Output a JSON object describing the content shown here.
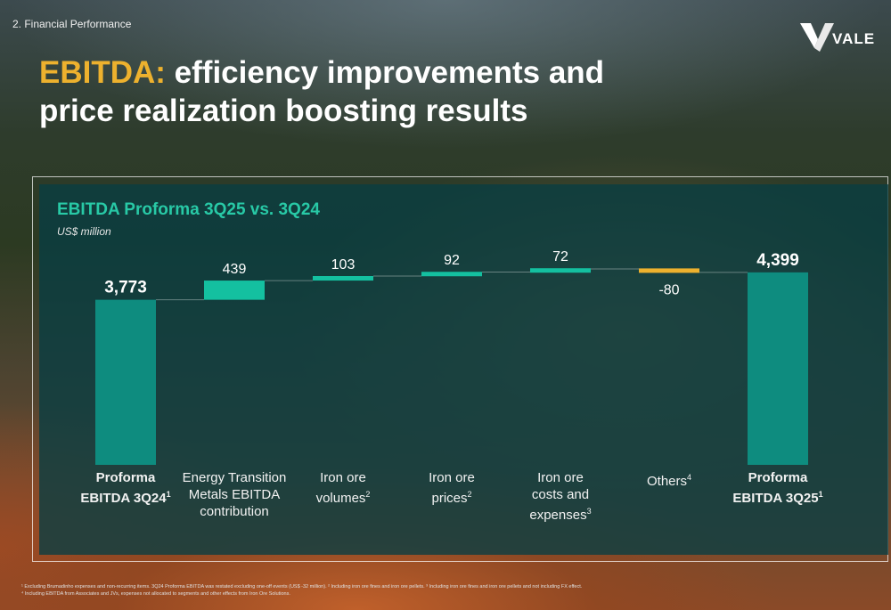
{
  "header": {
    "section": "2. Financial Performance",
    "logo_text": "VALE",
    "title_highlight": "EBITDA:",
    "title_rest": " efficiency improvements and price realization boosting results"
  },
  "colors": {
    "highlight": "#edb12e",
    "total_bar": "#0e8c7f",
    "positive_bar": "#14c0a0",
    "negative_bar": "#edb12e",
    "chart_title": "#28c9a6"
  },
  "chart_data": {
    "type": "waterfall",
    "title": "EBITDA Proforma 3Q25 vs. 3Q24",
    "unit": "US$ million",
    "categories": [
      {
        "lines": [
          "Proforma",
          "EBITDA 3Q24"
        ],
        "sup": "1",
        "bold": true
      },
      {
        "lines": [
          "Energy Transition",
          "Metals EBITDA",
          "contribution"
        ],
        "sup": "",
        "bold": false
      },
      {
        "lines": [
          "Iron ore",
          "volumes"
        ],
        "sup": "2",
        "bold": false
      },
      {
        "lines": [
          "Iron ore",
          "prices"
        ],
        "sup": "2",
        "bold": false
      },
      {
        "lines": [
          "Iron ore",
          "costs and",
          "expenses"
        ],
        "sup": "3",
        "bold": false
      },
      {
        "lines": [
          "Others"
        ],
        "sup": "4",
        "bold": false
      },
      {
        "lines": [
          "Proforma",
          "EBITDA 3Q25"
        ],
        "sup": "1",
        "bold": true
      }
    ],
    "values": [
      3773,
      439,
      103,
      92,
      72,
      -80,
      4399
    ],
    "labels": [
      "3,773",
      "439",
      "103",
      "92",
      "72",
      "-80",
      "4,399"
    ],
    "kinds": [
      "total",
      "delta",
      "delta",
      "delta",
      "delta",
      "delta",
      "total"
    ],
    "ylim": [
      0,
      4600
    ],
    "grid": false
  },
  "footnotes": [
    "¹ Excluding Brumadinho expenses and non-recurring items. 3Q24 Proforma EBITDA was restated excluding one-off events (US$ -32 million). ² Including iron ore fines and iron ore pellets. ³ Including iron ore fines and iron ore pellets and not including FX effect.",
    "⁴ Including EBITDA from Associates and JVs, expenses not allocated to segments and other effects from Iron Ore Solutions."
  ]
}
